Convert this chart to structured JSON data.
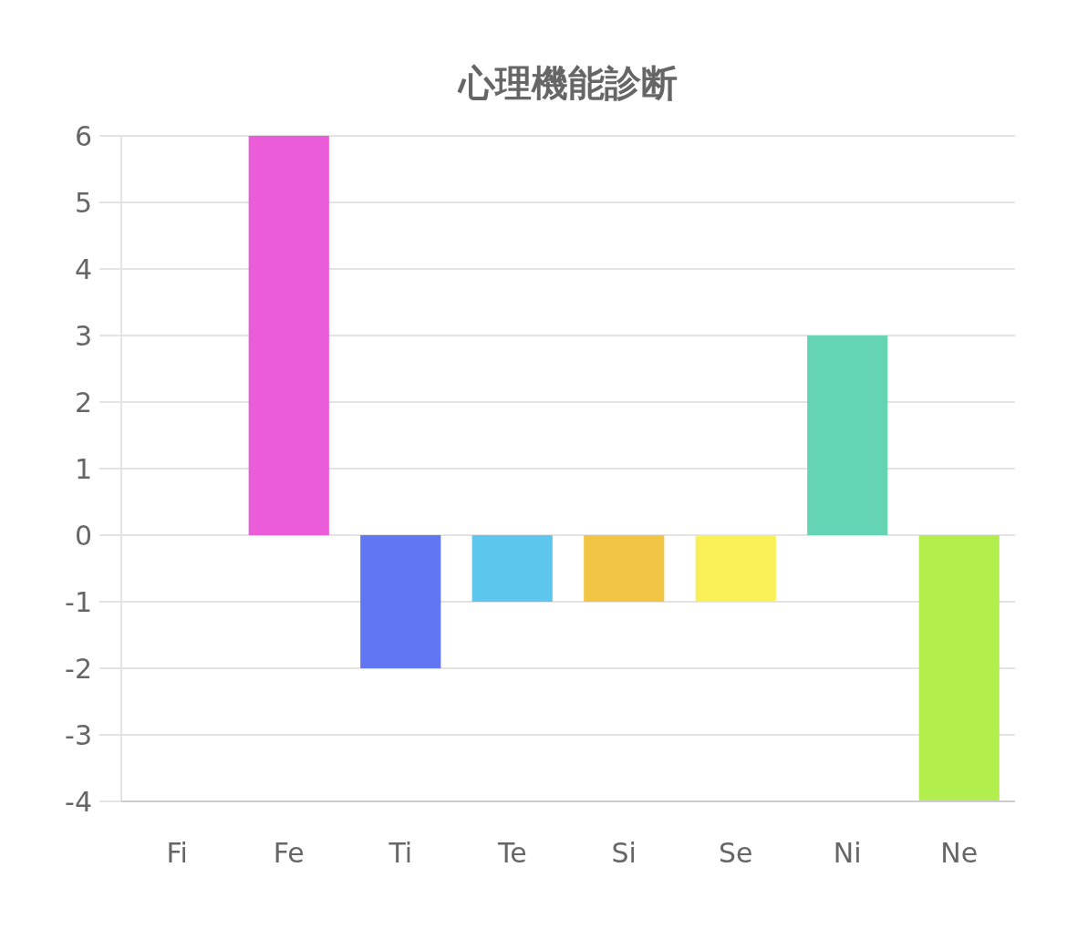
{
  "chart_data": {
    "type": "bar",
    "title": "心理機能診断",
    "categories": [
      "Fi",
      "Fe",
      "Ti",
      "Te",
      "Si",
      "Se",
      "Ni",
      "Ne"
    ],
    "values": [
      0,
      6,
      -2,
      -1,
      -1,
      -1,
      3,
      -4
    ],
    "colors": [
      "#ee6666",
      "#eb5cd9",
      "#6176f2",
      "#5cc6ed",
      "#f2c444",
      "#f9ef57",
      "#64d4b5",
      "#b3ef4c"
    ],
    "ylim": [
      -4,
      6
    ],
    "yticks": [
      -4,
      -3,
      -2,
      -1,
      0,
      1,
      2,
      3,
      4,
      5,
      6
    ],
    "grid": "y"
  }
}
